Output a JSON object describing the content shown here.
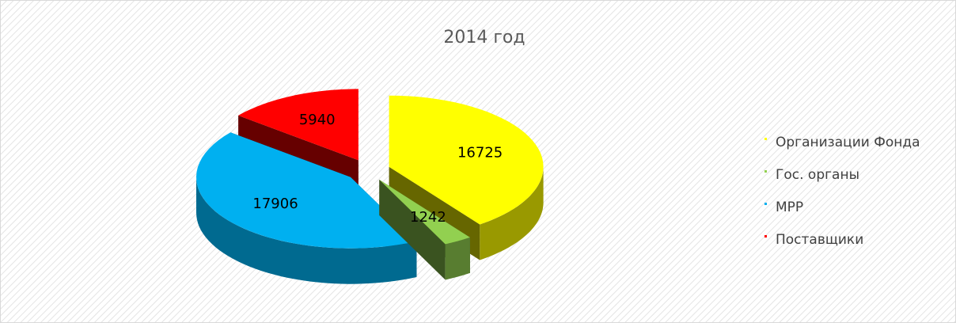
{
  "chart_data": {
    "type": "pie",
    "title": "2014 год",
    "categories": [
      "Организации Фонда",
      "Гос. органы",
      "МРР",
      "Поставщики"
    ],
    "values": [
      16725,
      1242,
      17906,
      5940
    ],
    "colors": [
      "#ffff00",
      "#92d050",
      "#00b0f0",
      "#ff0000"
    ],
    "legend": "right"
  }
}
